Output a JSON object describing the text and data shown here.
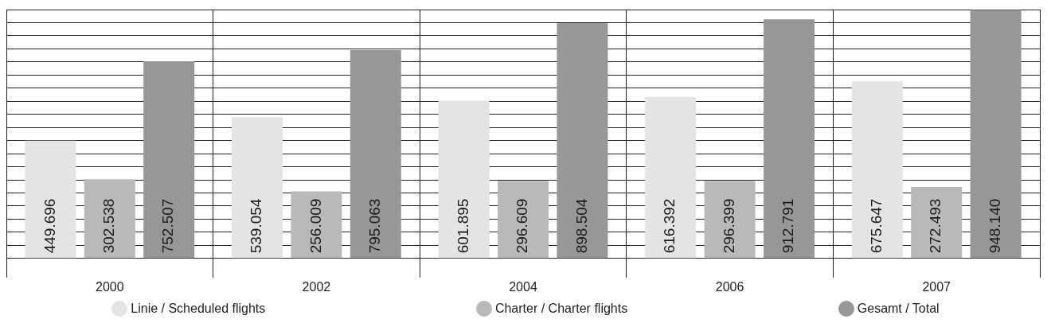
{
  "chart_data": {
    "type": "bar",
    "categories": [
      "2000",
      "2002",
      "2004",
      "2006",
      "2007"
    ],
    "series": [
      {
        "name": "Linie / Scheduled flights",
        "color": "#e4e4e4",
        "values": [
          449696,
          539054,
          601895,
          616392,
          675647
        ],
        "value_labels": [
          "449.696",
          "539.054",
          "601.895",
          "616.392",
          "675.647"
        ]
      },
      {
        "name": "Charter / Charter flights",
        "color": "#b9b9b9",
        "values": [
          302538,
          256009,
          296609,
          296399,
          272493
        ],
        "value_labels": [
          "302.538",
          "256.009",
          "296.609",
          "296.399",
          "272.493"
        ]
      },
      {
        "name": "Gesamt / Total",
        "color": "#979797",
        "values": [
          752507,
          795063,
          898504,
          912791,
          948140
        ],
        "value_labels": [
          "752.507",
          "795.063",
          "898.504",
          "912.791",
          "948.140"
        ]
      }
    ],
    "relative": false,
    "grid": true,
    "legend": "bottom"
  }
}
